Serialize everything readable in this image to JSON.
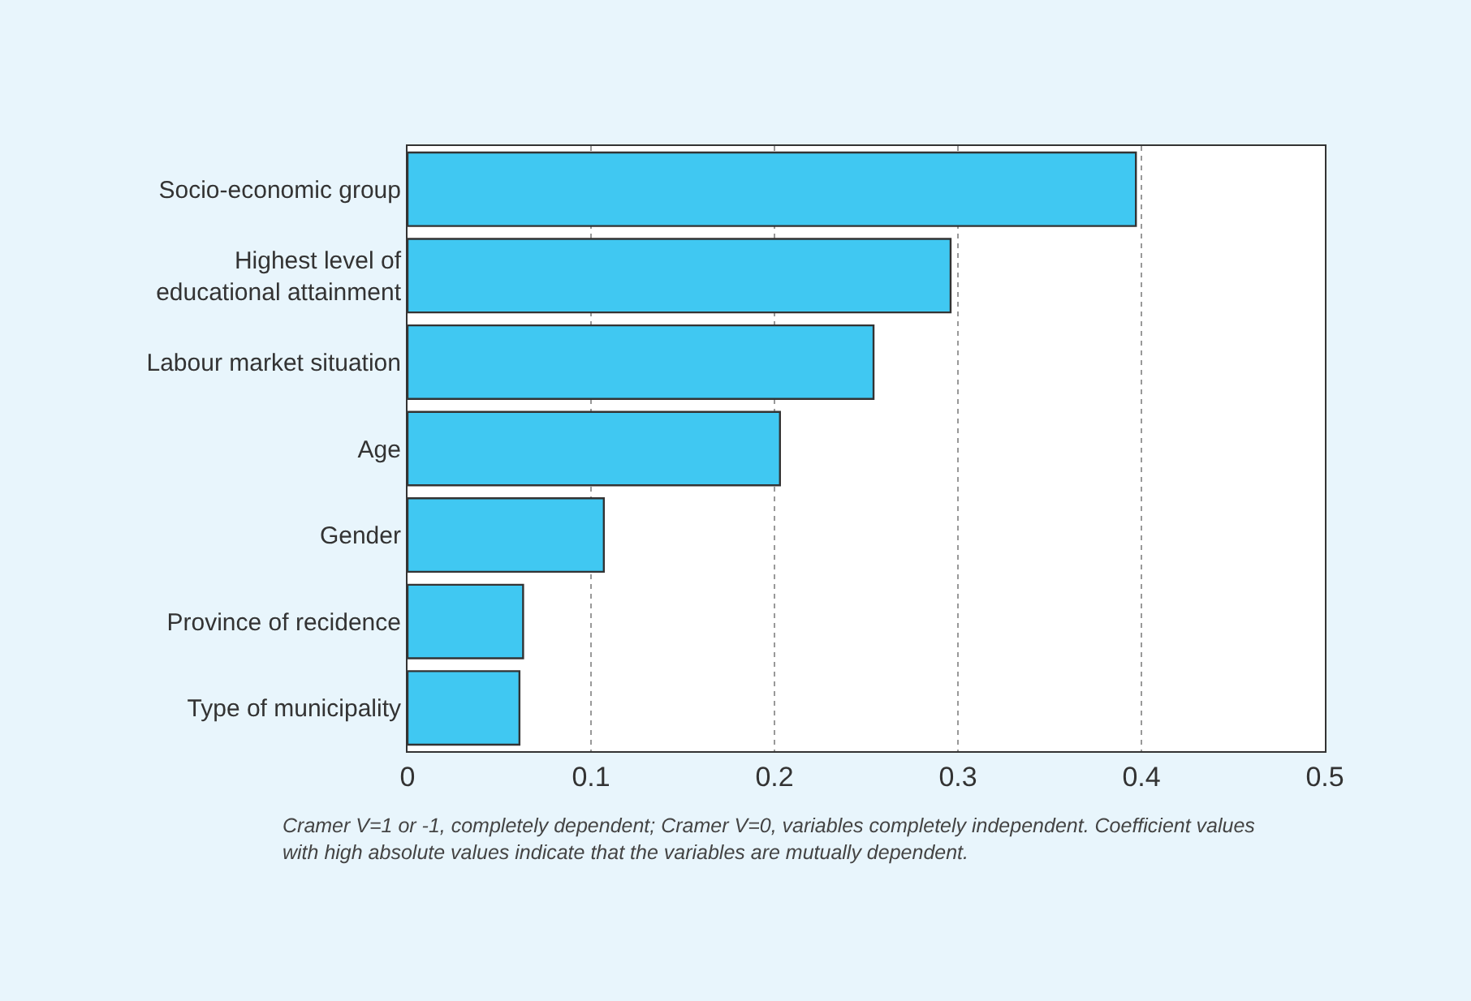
{
  "chart_data": {
    "type": "bar",
    "orientation": "horizontal",
    "categories": [
      "Socio-economic group",
      "Highest level of\neducational attainment",
      "Labour market situation",
      "Age",
      "Gender",
      "Province of recidence",
      "Type of municipality"
    ],
    "values": [
      0.397,
      0.296,
      0.254,
      0.203,
      0.107,
      0.063,
      0.061
    ],
    "color": "#40c8f2",
    "xlim": [
      0,
      0.5
    ],
    "xticks": [
      0,
      0.1,
      0.2,
      0.3,
      0.4,
      0.5
    ],
    "grid": "x",
    "annotations": [
      "Cramer V=1 or -1, completely dependent; Cramer V=0, variables completely independent. Coefficient values\nwith high absolute values indicate that the variables are mutually dependent."
    ]
  }
}
